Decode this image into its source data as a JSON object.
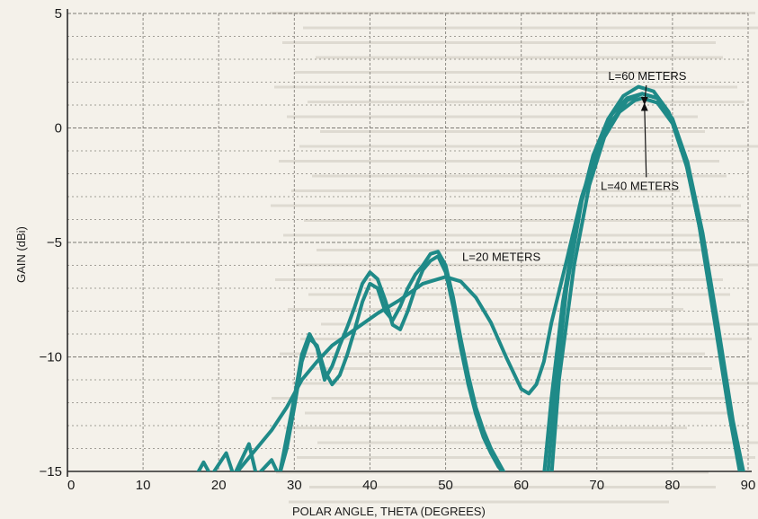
{
  "chart_data": {
    "type": "line",
    "title": "",
    "xlabel": "POLAR ANGLE, THETA (DEGREES)",
    "ylabel": "GAIN (dBi)",
    "xlim": [
      0,
      90
    ],
    "ylim": [
      -15,
      5
    ],
    "xticks": [
      "0",
      "10",
      "20",
      "30",
      "40",
      "50",
      "60",
      "70",
      "80",
      "90"
    ],
    "yticks": [
      "5",
      "0",
      "−5",
      "−10",
      "−15"
    ],
    "grid": true,
    "line_color": "#1f8a88",
    "series": [
      {
        "name": "L=20 METERS",
        "points": [
          [
            22,
            -15.2
          ],
          [
            25,
            -14.0
          ],
          [
            27,
            -13.2
          ],
          [
            29,
            -12.2
          ],
          [
            31,
            -11.0
          ],
          [
            33,
            -10.2
          ],
          [
            35,
            -9.5
          ],
          [
            38,
            -8.8
          ],
          [
            41,
            -8.1
          ],
          [
            44,
            -7.5
          ],
          [
            47,
            -6.8
          ],
          [
            50,
            -6.5
          ],
          [
            52,
            -6.7
          ],
          [
            54,
            -7.4
          ],
          [
            56,
            -8.5
          ],
          [
            58,
            -10.0
          ],
          [
            60,
            -11.4
          ],
          [
            61,
            -11.6
          ],
          [
            62,
            -11.2
          ],
          [
            63,
            -10.2
          ],
          [
            64,
            -8.5
          ],
          [
            66,
            -5.8
          ],
          [
            68,
            -3.0
          ],
          [
            70,
            -1.0
          ],
          [
            72,
            0.3
          ],
          [
            74,
            1.2
          ],
          [
            76,
            1.5
          ],
          [
            78,
            1.3
          ],
          [
            80,
            0.3
          ],
          [
            82,
            -1.8
          ],
          [
            84,
            -5.0
          ],
          [
            86,
            -9.0
          ],
          [
            88,
            -13.0
          ],
          [
            89,
            -15.2
          ]
        ]
      },
      {
        "name": "L=40 METERS",
        "points": [
          [
            17,
            -15.2
          ],
          [
            18,
            -14.6
          ],
          [
            19,
            -15.2
          ],
          [
            21,
            -14.2
          ],
          [
            22,
            -15.2
          ],
          [
            24,
            -13.8
          ],
          [
            25,
            -15.2
          ],
          [
            27,
            -14.5
          ],
          [
            28,
            -15.2
          ],
          [
            29,
            -13.5
          ],
          [
            30,
            -11.8
          ],
          [
            31,
            -9.9
          ],
          [
            32,
            -9.0
          ],
          [
            33,
            -9.6
          ],
          [
            34,
            -11.0
          ],
          [
            35,
            -10.4
          ],
          [
            36,
            -9.5
          ],
          [
            37,
            -8.7
          ],
          [
            38,
            -7.8
          ],
          [
            39,
            -6.8
          ],
          [
            40,
            -6.3
          ],
          [
            41,
            -6.6
          ],
          [
            42,
            -7.5
          ],
          [
            43,
            -8.6
          ],
          [
            44,
            -8.8
          ],
          [
            45,
            -8.0
          ],
          [
            46,
            -7.0
          ],
          [
            47,
            -6.2
          ],
          [
            48,
            -5.8
          ],
          [
            49,
            -5.6
          ],
          [
            50,
            -6.3
          ],
          [
            51,
            -7.8
          ],
          [
            52,
            -9.6
          ],
          [
            53,
            -11.2
          ],
          [
            54,
            -12.5
          ],
          [
            55,
            -13.5
          ],
          [
            56,
            -14.2
          ],
          [
            57,
            -14.8
          ],
          [
            58,
            -15.2
          ]
        ]
      },
      {
        "name": "L=60 METERS",
        "points": [
          [
            28,
            -15.2
          ],
          [
            29,
            -14.0
          ],
          [
            30,
            -12.2
          ],
          [
            31,
            -10.2
          ],
          [
            32,
            -9.2
          ],
          [
            33,
            -9.5
          ],
          [
            34,
            -10.6
          ],
          [
            35,
            -11.2
          ],
          [
            36,
            -10.8
          ],
          [
            37,
            -9.9
          ],
          [
            38,
            -8.8
          ],
          [
            39,
            -7.6
          ],
          [
            40,
            -6.8
          ],
          [
            41,
            -7.0
          ],
          [
            42,
            -8.0
          ],
          [
            43,
            -8.4
          ],
          [
            44,
            -7.8
          ],
          [
            45,
            -7.0
          ],
          [
            46,
            -6.4
          ],
          [
            47,
            -6.0
          ],
          [
            48,
            -5.5
          ],
          [
            49,
            -5.4
          ],
          [
            50,
            -6.0
          ],
          [
            51,
            -7.4
          ],
          [
            52,
            -9.2
          ],
          [
            53,
            -10.8
          ],
          [
            54,
            -12.2
          ],
          [
            55,
            -13.2
          ],
          [
            56,
            -14.0
          ],
          [
            57,
            -14.6
          ],
          [
            58,
            -15.2
          ]
        ]
      }
    ],
    "main_lobes": [
      {
        "name": "L=20 METERS",
        "points": [
          [
            64,
            -15.2
          ],
          [
            65,
            -11.0
          ],
          [
            67,
            -6.0
          ],
          [
            69,
            -2.5
          ],
          [
            71,
            -0.4
          ],
          [
            73,
            0.7
          ],
          [
            75,
            1.2
          ],
          [
            76,
            1.3
          ],
          [
            78,
            1.1
          ],
          [
            80,
            0.2
          ],
          [
            82,
            -1.8
          ],
          [
            84,
            -5.0
          ],
          [
            86,
            -9.0
          ],
          [
            88,
            -13.0
          ],
          [
            89,
            -15.2
          ]
        ]
      },
      {
        "name": "L=40 METERS",
        "points": [
          [
            63.5,
            -15.2
          ],
          [
            64.5,
            -11.5
          ],
          [
            66,
            -7.0
          ],
          [
            68,
            -3.2
          ],
          [
            70,
            -0.8
          ],
          [
            72,
            0.6
          ],
          [
            74,
            1.3
          ],
          [
            76,
            1.5
          ],
          [
            78,
            1.3
          ],
          [
            80,
            0.4
          ],
          [
            82,
            -1.5
          ],
          [
            84,
            -4.6
          ],
          [
            86,
            -8.6
          ],
          [
            88,
            -12.8
          ],
          [
            89.5,
            -15.2
          ]
        ]
      },
      {
        "name": "L=60 METERS",
        "points": [
          [
            63,
            -15.2
          ],
          [
            64,
            -11.8
          ],
          [
            65.5,
            -7.6
          ],
          [
            67.5,
            -3.8
          ],
          [
            69.5,
            -1.2
          ],
          [
            71.5,
            0.4
          ],
          [
            73.5,
            1.4
          ],
          [
            75.5,
            1.8
          ],
          [
            77.5,
            1.6
          ],
          [
            79.5,
            0.7
          ],
          [
            81.5,
            -1.1
          ],
          [
            83.5,
            -4.2
          ],
          [
            85.5,
            -8.3
          ],
          [
            87.5,
            -12.5
          ],
          [
            89,
            -15.2
          ]
        ]
      }
    ],
    "annotations": [
      {
        "text": "L=60 METERS",
        "x": 71.5,
        "y": 2.1,
        "arrow_to": [
          76.3,
          1.1
        ]
      },
      {
        "text": "L=40 METERS",
        "x": 70.5,
        "y": -2.7,
        "arrow_to": [
          76.3,
          1.0
        ]
      },
      {
        "text": "L=20 METERS",
        "x": 52.2,
        "y": -5.8,
        "arrow_to": null
      }
    ]
  }
}
